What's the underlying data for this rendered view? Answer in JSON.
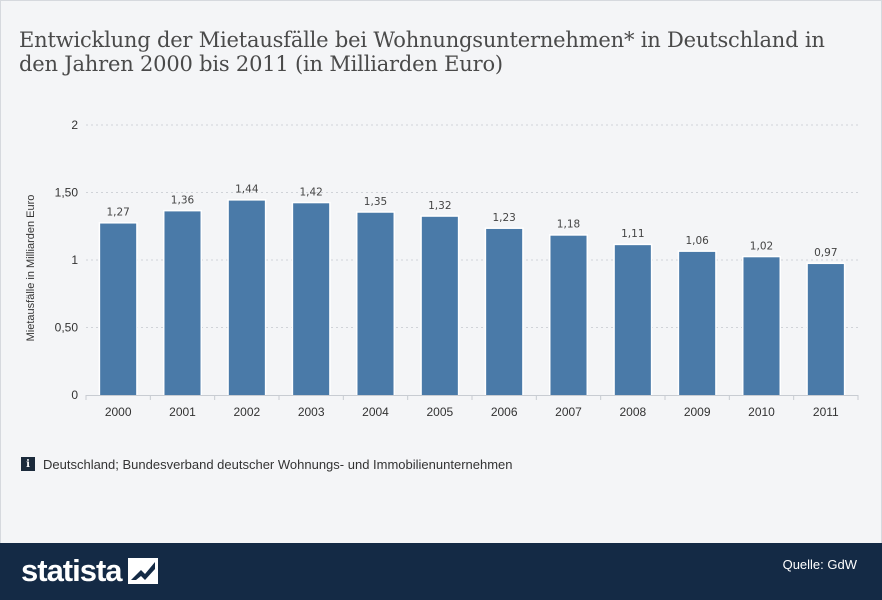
{
  "title": "Entwicklung der Mietausfälle bei Wohnungsunternehmen* in Deutschland in den Jahren 2000 bis 2011 (in Milliarden Euro)",
  "source_note": "Deutschland; Bundesverband deutscher Wohnungs- und Immobilienunternehmen",
  "info_icon_glyph": "i",
  "footer": {
    "brand": "statista",
    "credit": "Quelle: GdW"
  },
  "colors": {
    "bar": "#4a7aa8",
    "footer_bg": "#142a45",
    "grid": "#d0d3d8"
  },
  "chart_data": {
    "type": "bar",
    "title": "Entwicklung der Mietausfälle bei Wohnungsunternehmen* in Deutschland in den Jahren 2000 bis 2011 (in Milliarden Euro)",
    "xlabel": "",
    "ylabel": "Mietausfälle in Milliarden Euro",
    "categories": [
      "2000",
      "2001",
      "2002",
      "2003",
      "2004",
      "2005",
      "2006",
      "2007",
      "2008",
      "2009",
      "2010",
      "2011"
    ],
    "values": [
      1.27,
      1.36,
      1.44,
      1.42,
      1.35,
      1.32,
      1.23,
      1.18,
      1.11,
      1.06,
      1.02,
      0.97
    ],
    "value_labels": [
      "1,27",
      "1,36",
      "1,44",
      "1,42",
      "1,35",
      "1,32",
      "1,23",
      "1,18",
      "1,11",
      "1,06",
      "1,02",
      "0,97"
    ],
    "ylim": [
      0,
      2
    ],
    "yticks": [
      0,
      0.5,
      1,
      1.5,
      2
    ],
    "ytick_labels": [
      "0",
      "0,50",
      "1",
      "1,50",
      "2"
    ],
    "grid": true,
    "legend": "none"
  }
}
